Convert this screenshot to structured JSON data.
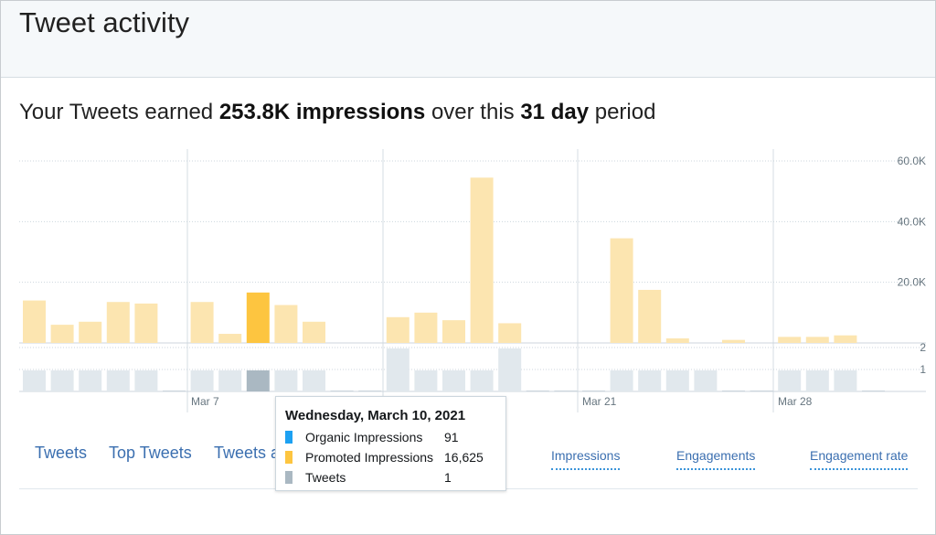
{
  "header": {
    "title": "Tweet activity"
  },
  "summary": {
    "prefix": "Your Tweets earned ",
    "impressions": "253.8K impressions",
    "middle": " over this ",
    "days": "31 day",
    "suffix": " period"
  },
  "chart_data": {
    "type": "bar",
    "title": "",
    "days": 31,
    "y_impressions_ticks": [
      "20.0K",
      "40.0K",
      "60.0K"
    ],
    "y_impressions_max": 60000,
    "y_tweets_ticks": [
      "1",
      "2"
    ],
    "x_labels": [
      "Mar 7",
      "Mar 21",
      "Mar 28"
    ],
    "series": [
      {
        "name": "Promoted Impressions",
        "values": [
          14000,
          6000,
          7000,
          13500,
          13000,
          0,
          13500,
          3000,
          16625,
          12500,
          7000,
          0,
          0,
          8500,
          10000,
          7500,
          54500,
          6500,
          0,
          0,
          0,
          34500,
          17500,
          1500,
          0,
          1000,
          0,
          2000,
          2000,
          2500,
          0
        ]
      },
      {
        "name": "Tweets",
        "values": [
          1,
          1,
          1,
          1,
          1,
          0,
          1,
          1,
          1,
          1,
          1,
          0,
          0,
          2,
          1,
          1,
          1,
          2,
          0,
          0,
          0,
          1,
          1,
          1,
          1,
          0,
          0,
          1,
          1,
          1,
          0
        ]
      }
    ],
    "highlight_index": 8,
    "colors": {
      "bar": "#fce5b0",
      "bar_highlight": "#fdc540",
      "tweet_bar": "#e1e8ed",
      "tweet_bar_highlight": "#aab8c2"
    }
  },
  "tooltip": {
    "title": "Wednesday, March 10, 2021",
    "rows": [
      {
        "label": "Organic Impressions",
        "value": "91",
        "color": "#1da1f2"
      },
      {
        "label": "Promoted Impressions",
        "value": "16,625",
        "color": "#fdc540"
      },
      {
        "label": "Tweets",
        "value": "1",
        "color": "#aab8c2"
      }
    ]
  },
  "tabs": [
    "Tweets",
    "Top Tweets",
    "Tweets a"
  ],
  "metrics": [
    "Impressions",
    "Engagements",
    "Engagement rate"
  ]
}
